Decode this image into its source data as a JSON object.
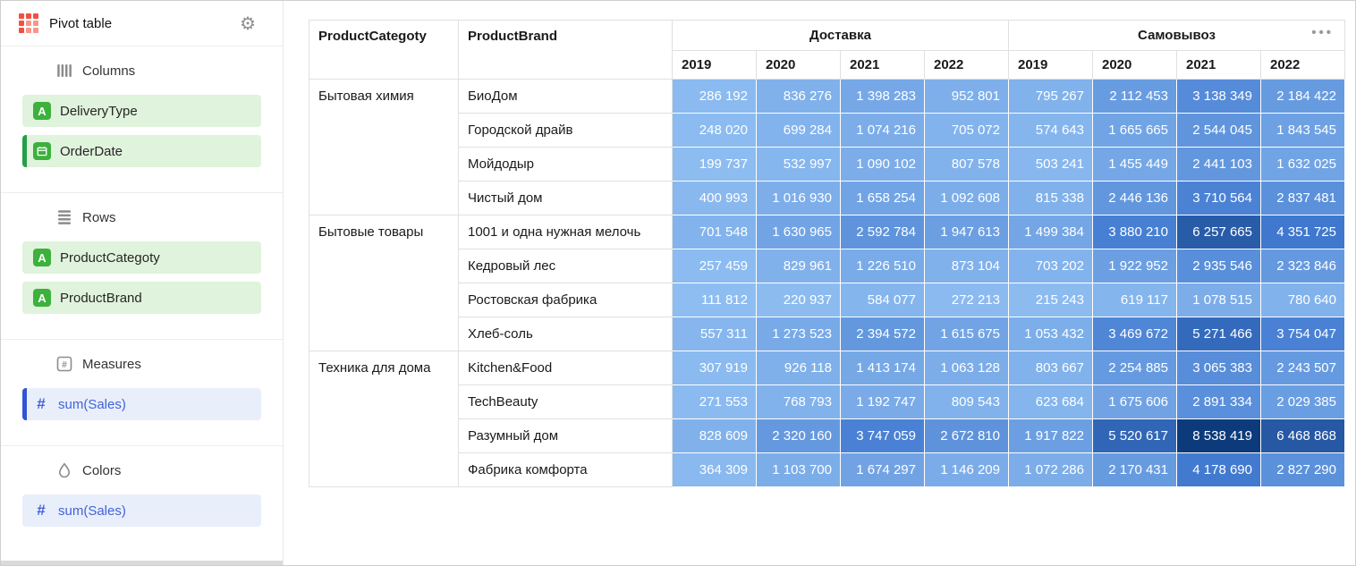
{
  "sidebar": {
    "title": "Pivot table",
    "sections": [
      {
        "label": "Columns",
        "chips": [
          {
            "label": "DeliveryType",
            "kind": "dimension",
            "accented": false
          },
          {
            "label": "OrderDate",
            "kind": "dimension-date",
            "accented": true
          }
        ]
      },
      {
        "label": "Rows",
        "chips": [
          {
            "label": "ProductCategoty",
            "kind": "dimension",
            "accented": false
          },
          {
            "label": "ProductBrand",
            "kind": "dimension",
            "accented": false
          }
        ]
      },
      {
        "label": "Measures",
        "chips": [
          {
            "label": "sum(Sales)",
            "kind": "measure",
            "accented": true
          }
        ]
      },
      {
        "label": "Colors",
        "chips": [
          {
            "label": "sum(Sales)",
            "kind": "measure",
            "accented": false
          }
        ]
      }
    ]
  },
  "icons": {
    "string_field_glyph": "A",
    "measure_glyph": "#"
  },
  "main": {
    "menu_glyph": "•••"
  },
  "colors": {
    "accent_red": "#f4503f",
    "accent_red_light": "#f9968b",
    "chip_green_bg": "#e0f3dc",
    "field_green": "#3cb13c",
    "green_accent": "#23a047",
    "chip_blue_bg": "#e9eefb",
    "measure_blue": "#4164d6",
    "blue_accent": "#3154d4"
  },
  "chart_data": {
    "type": "table",
    "title": "Pivot table",
    "measure": "sum(Sales)",
    "row_dimensions": [
      "ProductCategoty",
      "ProductBrand"
    ],
    "column_groups": [
      {
        "group": "Доставка",
        "years": [
          "2019",
          "2020",
          "2021",
          "2022"
        ]
      },
      {
        "group": "Самовывоз",
        "years": [
          "2019",
          "2020",
          "2021",
          "2022"
        ]
      }
    ],
    "color_scale": {
      "min": 111812,
      "max": 8538419,
      "stops": [
        "#8ebdf1",
        "#3f78cf",
        "#0d3a7b"
      ]
    },
    "groups": [
      {
        "category": "Бытовая химия",
        "rows": [
          {
            "brand": "БиоДом",
            "values": [
              286192,
              836276,
              1398283,
              952801,
              795267,
              2112453,
              3138349,
              2184422
            ]
          },
          {
            "brand": "Городской драйв",
            "values": [
              248020,
              699284,
              1074216,
              705072,
              574643,
              1665665,
              2544045,
              1843545
            ]
          },
          {
            "brand": "Мойдодыр",
            "values": [
              199737,
              532997,
              1090102,
              807578,
              503241,
              1455449,
              2441103,
              1632025
            ]
          },
          {
            "brand": "Чистый дом",
            "values": [
              400993,
              1016930,
              1658254,
              1092608,
              815338,
              2446136,
              3710564,
              2837481
            ]
          }
        ]
      },
      {
        "category": "Бытовые товары",
        "rows": [
          {
            "brand": "1001 и одна нужная мелочь",
            "values": [
              701548,
              1630965,
              2592784,
              1947613,
              1499384,
              3880210,
              6257665,
              4351725
            ]
          },
          {
            "brand": "Кедровый лес",
            "values": [
              257459,
              829961,
              1226510,
              873104,
              703202,
              1922952,
              2935546,
              2323846
            ]
          },
          {
            "brand": "Ростовская фабрика",
            "values": [
              111812,
              220937,
              584077,
              272213,
              215243,
              619117,
              1078515,
              780640
            ]
          },
          {
            "brand": "Хлеб-соль",
            "values": [
              557311,
              1273523,
              2394572,
              1615675,
              1053432,
              3469672,
              5271466,
              3754047
            ]
          }
        ]
      },
      {
        "category": "Техника для дома",
        "rows": [
          {
            "brand": "Kitchen&Food",
            "values": [
              307919,
              926118,
              1413174,
              1063128,
              803667,
              2254885,
              3065383,
              2243507
            ]
          },
          {
            "brand": "TechBeauty",
            "values": [
              271553,
              768793,
              1192747,
              809543,
              623684,
              1675606,
              2891334,
              2029385
            ]
          },
          {
            "brand": "Разумный дом",
            "values": [
              828609,
              2320160,
              3747059,
              2672810,
              1917822,
              5520617,
              8538419,
              6468868
            ]
          },
          {
            "brand": "Фабрика комфорта",
            "values": [
              364309,
              1103700,
              1674297,
              1146209,
              1072286,
              2170431,
              4178690,
              2827290
            ]
          }
        ]
      }
    ]
  }
}
